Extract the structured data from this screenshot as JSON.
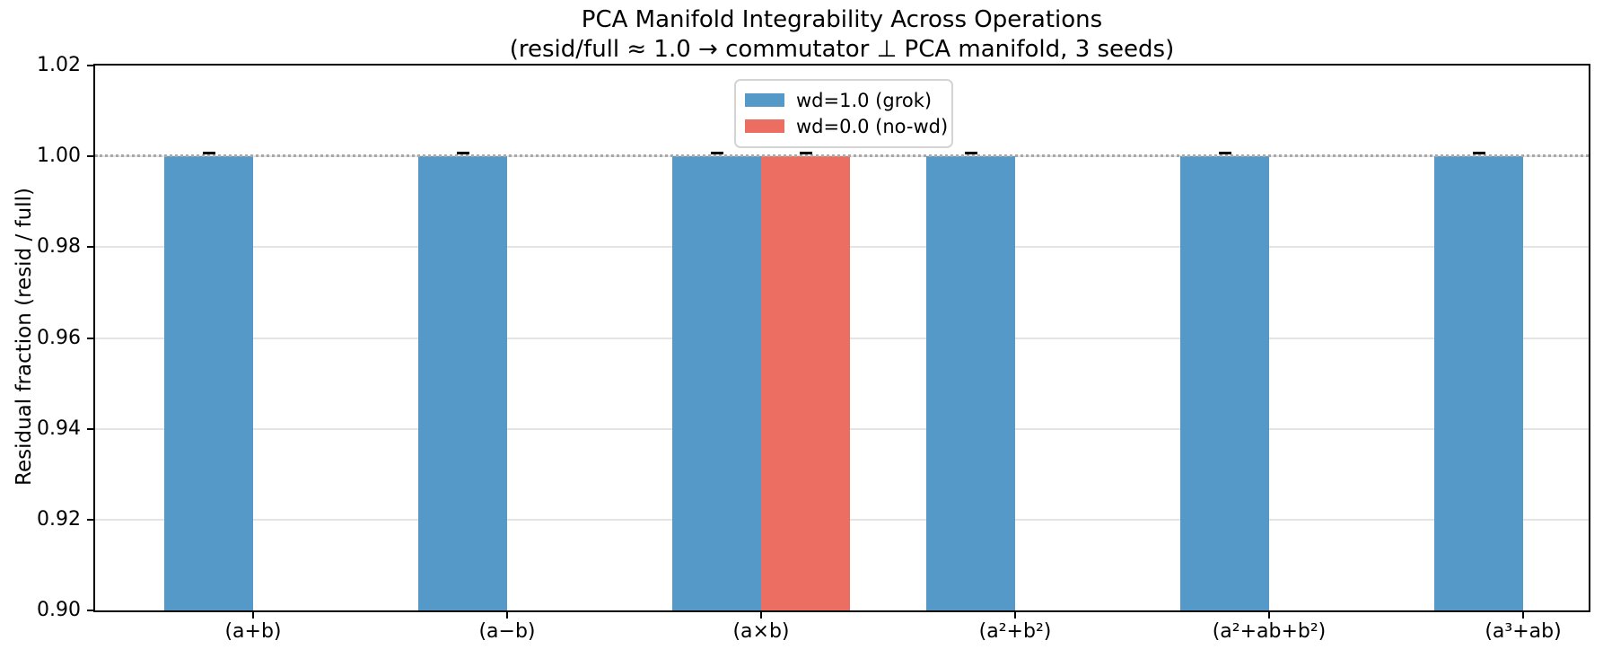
{
  "chart_data": {
    "type": "bar",
    "title": "PCA Manifold Integrability Across Operations",
    "subtitle": "(resid/full ≈ 1.0 → commutator ⊥ PCA manifold, 3 seeds)",
    "xlabel": "",
    "ylabel": "Residual fraction (resid / full)",
    "ylim": [
      0.9,
      1.02
    ],
    "yticks": [
      0.9,
      0.92,
      0.94,
      0.96,
      0.98,
      1.0,
      1.02
    ],
    "ytick_labels": [
      "0.90",
      "0.92",
      "0.94",
      "0.96",
      "0.98",
      "1.00",
      "1.02"
    ],
    "categories": [
      "(a+b)",
      "(a−b)",
      "(a×b)",
      "(a²+b²)",
      "(a²+ab+b²)",
      "(a³+ab)"
    ],
    "grid": true,
    "legend_position": "upper center",
    "reference_line": {
      "y": 1.0,
      "style": "dotted",
      "color": "#a8a8a8"
    },
    "bar_width_fraction": 0.35,
    "series": [
      {
        "name": "wd=1.0 (grok)",
        "color": "#5599c8",
        "values": [
          1.0,
          1.0,
          1.0,
          1.0,
          1.0,
          1.0
        ],
        "errors": [
          0.0005,
          0.0005,
          0.0005,
          0.0005,
          0.0005,
          0.0005
        ]
      },
      {
        "name": "wd=0.0 (no-wd)",
        "color": "#ec6e62",
        "values": [
          null,
          null,
          1.0,
          null,
          null,
          null
        ],
        "errors": [
          null,
          null,
          0.0005,
          null,
          null,
          null
        ]
      }
    ]
  }
}
